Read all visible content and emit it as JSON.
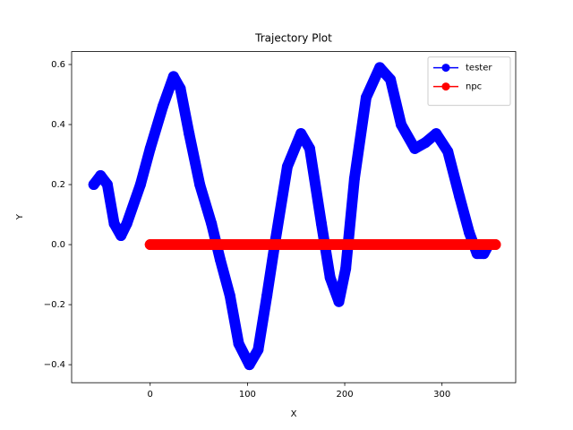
{
  "chart_data": {
    "type": "line",
    "title": "Trajectory Plot",
    "x_label": "X",
    "y_label": "Y",
    "xlim": [
      -80.75,
      375.75
    ],
    "ylim": [
      -0.46,
      0.643
    ],
    "xticks": [
      0,
      100,
      200,
      300
    ],
    "yticks": [
      {
        "value": -0.4,
        "label": "−0.4"
      },
      {
        "value": -0.2,
        "label": "−0.2"
      },
      {
        "value": 0,
        "label": "0.0"
      },
      0.2,
      0.4,
      0.6
    ],
    "grid": false,
    "legend": "upper right",
    "series": [
      {
        "name": "tester",
        "color": "#0000ff",
        "x": [
          -58,
          -51,
          -44,
          -37,
          -30,
          -24,
          -10,
          0,
          13,
          24,
          31,
          40,
          51,
          63,
          72,
          82,
          91,
          102,
          111,
          120,
          129,
          141,
          155,
          164,
          176,
          185,
          194,
          201,
          210,
          222,
          236,
          247,
          258,
          272,
          283,
          294,
          306,
          318,
          328,
          336,
          343,
          348
        ],
        "values": [
          0.2,
          0.23,
          0.2,
          0.07,
          0.03,
          0.07,
          0.2,
          0.32,
          0.46,
          0.56,
          0.52,
          0.37,
          0.2,
          0.07,
          -0.05,
          -0.17,
          -0.33,
          -0.4,
          -0.35,
          -0.17,
          0.02,
          0.26,
          0.37,
          0.32,
          0.07,
          -0.11,
          -0.19,
          -0.08,
          0.22,
          0.49,
          0.59,
          0.55,
          0.4,
          0.32,
          0.34,
          0.37,
          0.31,
          0.16,
          0.04,
          -0.03,
          -0.03,
          0
        ]
      },
      {
        "name": "npc",
        "color": "#ff0000",
        "x": [
          0,
          5,
          10,
          15,
          20,
          25,
          30,
          35,
          40,
          45,
          50,
          55,
          60,
          65,
          70,
          75,
          80,
          85,
          90,
          95,
          100,
          105,
          110,
          115,
          120,
          125,
          130,
          135,
          140,
          145,
          150,
          155,
          160,
          165,
          170,
          175,
          180,
          185,
          190,
          195,
          200,
          205,
          210,
          215,
          220,
          225,
          230,
          235,
          240,
          245,
          250,
          255,
          260,
          265,
          270,
          275,
          280,
          285,
          290,
          295,
          300,
          305,
          310,
          315,
          320,
          325,
          330,
          335,
          340,
          345,
          350,
          355
        ],
        "values": [
          0,
          0,
          0,
          0,
          0,
          0,
          0,
          0,
          0,
          0,
          0,
          0,
          0,
          0,
          0,
          0,
          0,
          0,
          0,
          0,
          0,
          0,
          0,
          0,
          0,
          0,
          0,
          0,
          0,
          0,
          0,
          0,
          0,
          0,
          0,
          0,
          0,
          0,
          0,
          0,
          0,
          0,
          0,
          0,
          0,
          0,
          0,
          0,
          0,
          0,
          0,
          0,
          0,
          0,
          0,
          0,
          0,
          0,
          0,
          0,
          0,
          0,
          0,
          0,
          0,
          0,
          0,
          0,
          0,
          0,
          0,
          0
        ]
      }
    ]
  }
}
